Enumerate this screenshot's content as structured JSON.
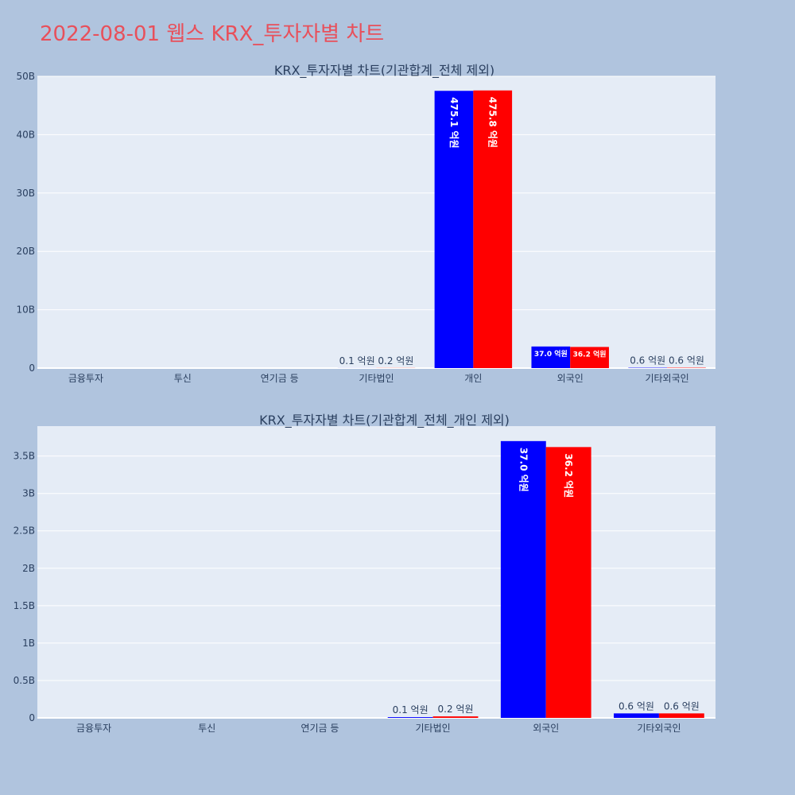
{
  "title": "2022-08-01 웹스 KRX_투자자별 차트",
  "chart_data": [
    {
      "type": "bar",
      "title": "KRX_투자자별 차트(기관합계_전체 제외)",
      "categories": [
        "금융투자",
        "투신",
        "연기금 등",
        "기타법인",
        "개인",
        "외국인",
        "기타외국인"
      ],
      "series": [
        {
          "color": "#0000ff",
          "values": [
            0,
            0,
            0,
            10000000,
            47510000000,
            3700000000,
            60000000
          ],
          "labels": [
            "",
            "",
            "",
            "0.1 억원",
            "475.1 억원",
            "37.0 억원",
            "0.6 억원"
          ]
        },
        {
          "color": "#ff0000",
          "values": [
            0,
            0,
            0,
            20000000,
            47580000000,
            3620000000,
            60000000
          ],
          "labels": [
            "",
            "",
            "",
            "0.2 억원",
            "475.8 억원",
            "36.2 억원",
            "0.6 억원"
          ]
        }
      ],
      "ylim": [
        0,
        50000000000
      ],
      "yticks": [
        0,
        10000000000,
        20000000000,
        30000000000,
        40000000000,
        50000000000
      ],
      "yticklabels": [
        "0",
        "10B",
        "20B",
        "30B",
        "40B",
        "50B"
      ],
      "grid": true
    },
    {
      "type": "bar",
      "title": "KRX_투자자별 차트(기관합계_전체_개인 제외)",
      "categories": [
        "금융투자",
        "투신",
        "연기금 등",
        "기타법인",
        "외국인",
        "기타외국인"
      ],
      "series": [
        {
          "color": "#0000ff",
          "values": [
            0,
            0,
            0,
            10000000,
            3700000000,
            60000000
          ],
          "labels": [
            "",
            "",
            "",
            "0.1 억원",
            "37.0 억원",
            "0.6 억원"
          ]
        },
        {
          "color": "#ff0000",
          "values": [
            0,
            0,
            0,
            20000000,
            3620000000,
            60000000
          ],
          "labels": [
            "",
            "",
            "",
            "0.2 억원",
            "36.2 억원",
            "0.6 억원"
          ]
        }
      ],
      "ylim": [
        0,
        3900000000
      ],
      "yticks": [
        0,
        500000000,
        1000000000,
        1500000000,
        2000000000,
        2500000000,
        3000000000,
        3500000000
      ],
      "yticklabels": [
        "0",
        "0.5B",
        "1B",
        "1.5B",
        "2B",
        "2.5B",
        "3B",
        "3.5B"
      ],
      "grid": true
    }
  ]
}
